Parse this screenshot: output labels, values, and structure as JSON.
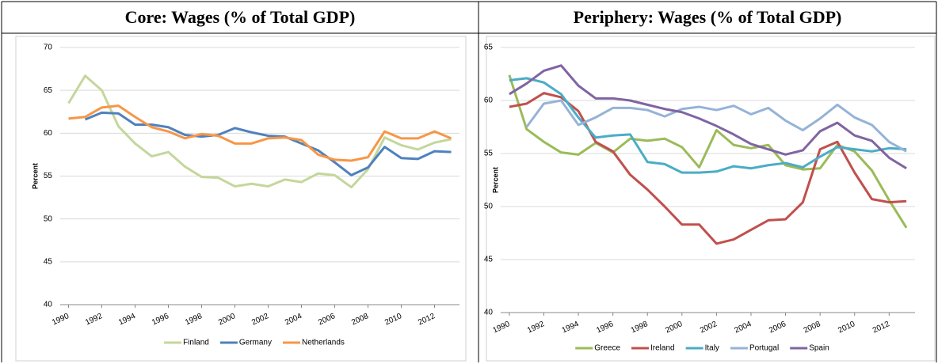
{
  "chart_data": [
    {
      "type": "line",
      "title": "Core: Wages (% of Total GDP)",
      "y_label": "Percent",
      "x": [
        1990,
        1991,
        1992,
        1993,
        1994,
        1995,
        1996,
        1997,
        1998,
        1999,
        2000,
        2001,
        2002,
        2003,
        2004,
        2005,
        2006,
        2007,
        2008,
        2009,
        2010,
        2011,
        2012,
        2013
      ],
      "xlim": [
        1989.5,
        2013.5
      ],
      "xticks": [
        1990,
        1992,
        1994,
        1996,
        1998,
        2000,
        2002,
        2004,
        2006,
        2008,
        2010,
        2012
      ],
      "ylim": [
        40,
        70
      ],
      "yticks": [
        40,
        45,
        50,
        55,
        60,
        65,
        70
      ],
      "grid": true,
      "legend": "bottom",
      "series": [
        {
          "name": "Finland",
          "color": "#c4d79b",
          "values": [
            63.5,
            66.7,
            65.0,
            60.8,
            58.8,
            57.3,
            57.8,
            56.1,
            54.9,
            54.8,
            53.8,
            54.1,
            53.8,
            54.6,
            54.3,
            55.3,
            55.1,
            53.7,
            55.8,
            59.5,
            58.6,
            58.1,
            58.9,
            59.3
          ]
        },
        {
          "name": "Germany",
          "color": "#4f81bd",
          "values": [
            null,
            61.6,
            62.4,
            62.3,
            61.0,
            61.0,
            60.7,
            59.8,
            59.6,
            59.8,
            60.6,
            60.1,
            59.7,
            59.6,
            58.8,
            58.0,
            56.6,
            55.1,
            56.0,
            58.4,
            57.1,
            57.0,
            57.9,
            57.8
          ]
        },
        {
          "name": "Netherlands",
          "color": "#f79646",
          "values": [
            61.7,
            61.9,
            63.0,
            63.2,
            61.9,
            60.7,
            60.2,
            59.4,
            59.9,
            59.7,
            58.8,
            58.8,
            59.4,
            59.5,
            59.2,
            57.5,
            56.9,
            56.8,
            57.2,
            60.2,
            59.4,
            59.4,
            60.2,
            59.4
          ]
        }
      ]
    },
    {
      "type": "line",
      "title": "Periphery: Wages (% of Total GDP)",
      "y_label": "Percent",
      "x": [
        1990,
        1991,
        1992,
        1993,
        1994,
        1995,
        1996,
        1997,
        1998,
        1999,
        2000,
        2001,
        2002,
        2003,
        2004,
        2005,
        2006,
        2007,
        2008,
        2009,
        2010,
        2011,
        2012,
        2013
      ],
      "xlim": [
        1989.5,
        2013.5
      ],
      "xticks": [
        1990,
        1992,
        1994,
        1996,
        1998,
        2000,
        2002,
        2004,
        2006,
        2008,
        2010,
        2012
      ],
      "ylim": [
        40,
        65
      ],
      "yticks": [
        40,
        45,
        50,
        55,
        60,
        65
      ],
      "grid": true,
      "legend": "bottom",
      "series": [
        {
          "name": "Greece",
          "color": "#9bbb59",
          "values": [
            62.4,
            57.3,
            56.1,
            55.1,
            54.9,
            56.0,
            55.1,
            56.4,
            56.2,
            56.4,
            55.6,
            53.7,
            57.2,
            55.8,
            55.5,
            55.8,
            53.9,
            53.5,
            53.6,
            55.8,
            55.2,
            53.4,
            50.6,
            48.0
          ]
        },
        {
          "name": "Ireland",
          "color": "#c0504d",
          "values": [
            59.4,
            59.7,
            60.7,
            60.3,
            59.0,
            56.1,
            55.2,
            53.0,
            51.6,
            50.0,
            48.3,
            48.3,
            46.5,
            46.9,
            47.8,
            48.7,
            48.8,
            50.4,
            55.4,
            56.1,
            53.2,
            50.7,
            50.4,
            50.5
          ]
        },
        {
          "name": "Italy",
          "color": "#4bacc6",
          "values": [
            61.9,
            62.1,
            61.7,
            60.6,
            58.4,
            56.5,
            56.7,
            56.8,
            54.2,
            54.0,
            53.2,
            53.2,
            53.3,
            53.8,
            53.6,
            53.9,
            54.1,
            53.7,
            54.7,
            55.6,
            55.4,
            55.2,
            55.5,
            55.4
          ]
        },
        {
          "name": "Portugal",
          "color": "#95b3d7",
          "values": [
            null,
            57.5,
            59.7,
            60.0,
            57.7,
            58.4,
            59.3,
            59.3,
            59.1,
            58.5,
            59.2,
            59.4,
            59.1,
            59.5,
            58.7,
            59.3,
            58.1,
            57.2,
            58.3,
            59.6,
            58.4,
            57.7,
            56.1,
            55.2
          ]
        },
        {
          "name": "Spain",
          "color": "#8064a2",
          "values": [
            60.6,
            61.6,
            62.8,
            63.3,
            61.4,
            60.2,
            60.2,
            60.0,
            59.6,
            59.2,
            58.9,
            58.3,
            57.6,
            56.8,
            55.9,
            55.4,
            54.9,
            55.3,
            57.1,
            57.9,
            56.7,
            56.2,
            54.6,
            53.6
          ]
        }
      ]
    }
  ]
}
